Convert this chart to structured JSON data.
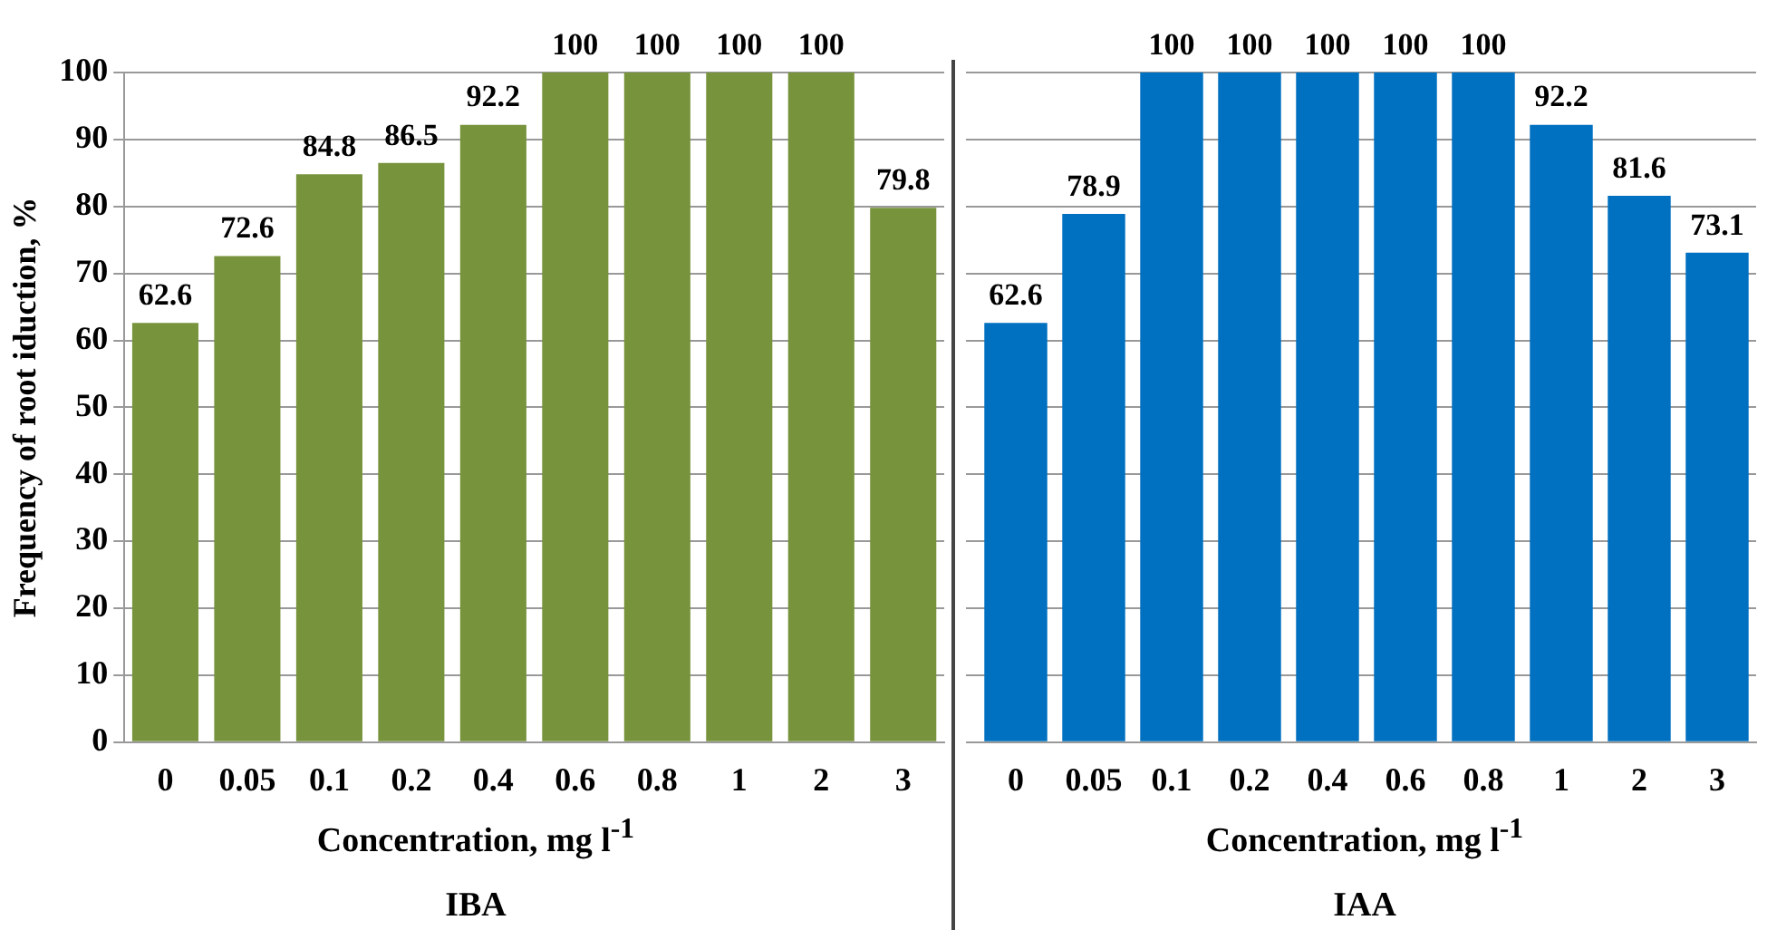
{
  "chart_data": [
    {
      "type": "bar",
      "title": "IBA",
      "xlabel": "Concentration, mg l$^{-1}$",
      "ylabel": "Frequency of root iduction, %",
      "categories": [
        "0",
        "0.05",
        "0.1",
        "0.2",
        "0.4",
        "0.6",
        "0.8",
        "1",
        "2",
        "3"
      ],
      "values": [
        62.6,
        72.6,
        84.8,
        86.5,
        92.2,
        100,
        100,
        100,
        100,
        79.8
      ],
      "color": "#77933c",
      "ylim": [
        0,
        100
      ],
      "yticks": [
        0,
        10,
        20,
        30,
        40,
        50,
        60,
        70,
        80,
        90,
        100
      ],
      "grid": "y",
      "data_labels": true
    },
    {
      "type": "bar",
      "title": "IAA",
      "xlabel": "Concentration, mg l$^{-1}$",
      "categories": [
        "0",
        "0.05",
        "0.1",
        "0.2",
        "0.4",
        "0.6",
        "0.8",
        "1",
        "2",
        "3"
      ],
      "values": [
        62.6,
        78.9,
        100,
        100,
        100,
        100,
        100,
        92.2,
        81.6,
        73.1
      ],
      "color": "#0070c0",
      "ylim": [
        0,
        100
      ],
      "yticks": [
        0,
        10,
        20,
        30,
        40,
        50,
        60,
        70,
        80,
        90,
        100
      ],
      "grid": "y",
      "data_labels": true,
      "tick_labels": "x"
    }
  ]
}
